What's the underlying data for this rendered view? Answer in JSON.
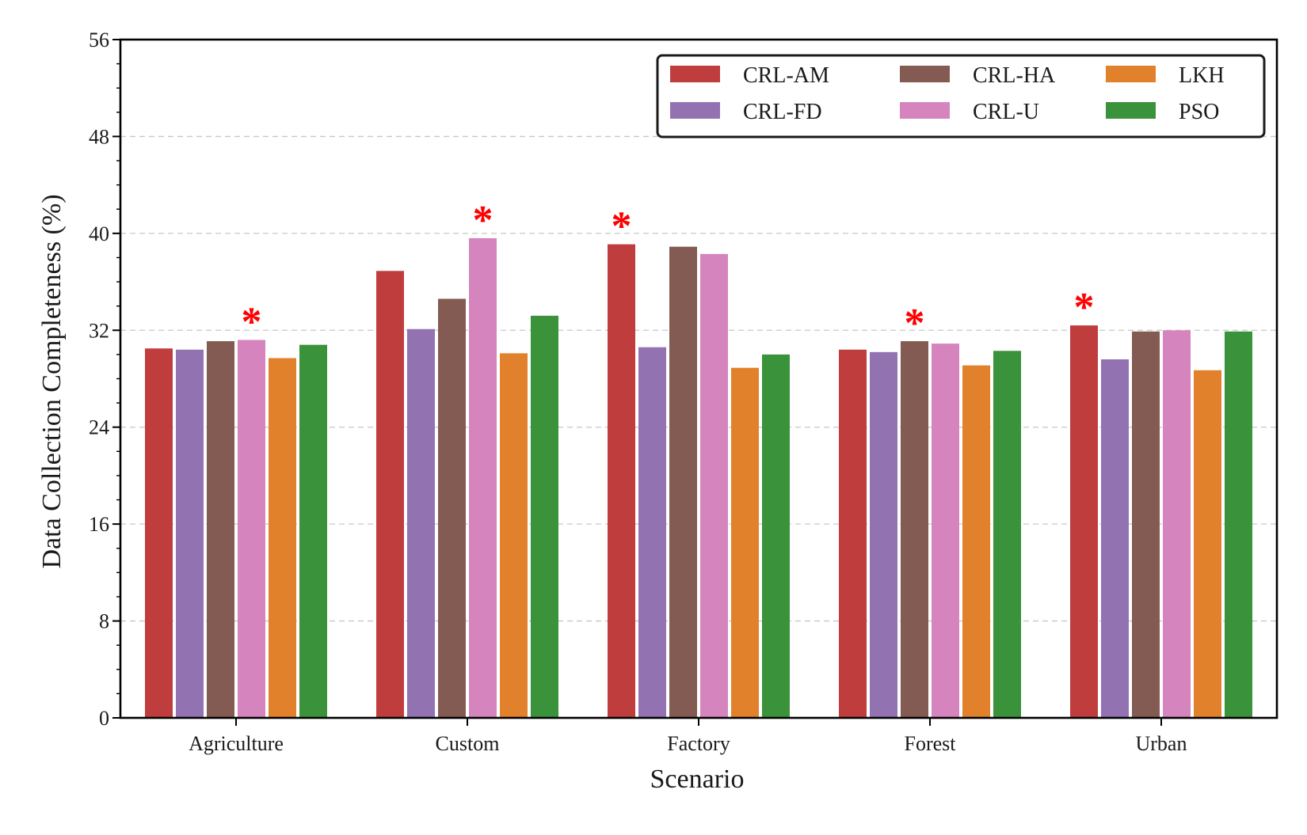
{
  "chart_data": {
    "type": "bar",
    "xlabel": "Scenario",
    "ylabel": "Data Collection Completeness (%)",
    "ylim": [
      0,
      56
    ],
    "yticks": [
      "0",
      "8",
      "16",
      "24",
      "32",
      "40",
      "48",
      "56"
    ],
    "grid": "horizontal dashed",
    "legend_position": "top-right",
    "categories": [
      "Agriculture",
      "Custom",
      "Factory",
      "Forest",
      "Urban"
    ],
    "series": [
      {
        "name": "CRL-AM",
        "color": "#c03d3e",
        "values": [
          30.5,
          36.9,
          39.1,
          30.4,
          32.4
        ]
      },
      {
        "name": "CRL-FD",
        "color": "#9372b2",
        "values": [
          30.4,
          32.1,
          30.6,
          30.2,
          29.6
        ]
      },
      {
        "name": "CRL-HA",
        "color": "#845b53",
        "values": [
          31.1,
          34.6,
          38.9,
          31.1,
          31.9
        ]
      },
      {
        "name": "CRL-U",
        "color": "#d684bd",
        "values": [
          31.2,
          39.6,
          38.3,
          30.9,
          32.0
        ]
      },
      {
        "name": "LKH",
        "color": "#e1812b",
        "values": [
          29.7,
          30.1,
          28.9,
          29.1,
          28.7
        ]
      },
      {
        "name": "PSO",
        "color": "#3a923a",
        "values": [
          30.8,
          33.2,
          30.0,
          30.3,
          31.9
        ]
      }
    ],
    "markers": [
      {
        "category": "Agriculture",
        "series": "CRL-U",
        "symbol": "*"
      },
      {
        "category": "Custom",
        "series": "CRL-U",
        "symbol": "*"
      },
      {
        "category": "Factory",
        "series": "CRL-AM",
        "symbol": "*"
      },
      {
        "category": "Forest",
        "series": "CRL-HA",
        "symbol": "*"
      },
      {
        "category": "Urban",
        "series": "CRL-AM",
        "symbol": "*"
      }
    ],
    "marker_color": "#ff0000"
  }
}
